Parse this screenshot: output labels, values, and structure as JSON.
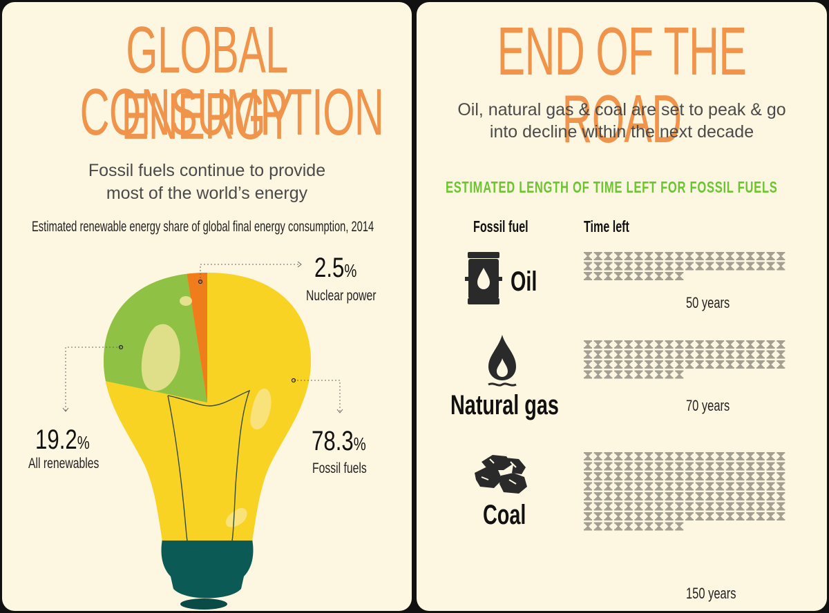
{
  "left": {
    "title_line1": "GLOBAL ENERGY",
    "title_line2": "CONSUMPTION",
    "subtitle_line1": "Fossil fuels continue to provide",
    "subtitle_line2": "most of the world’s energy",
    "chart_caption": "Estimated renewable energy share of global final energy consumption, 2014"
  },
  "right": {
    "title": "END OF THE ROAD",
    "subtitle_line1": "Oil, natural gas & coal are set to peak & go",
    "subtitle_line2": "into decline within the next decade",
    "heading": "ESTIMATED LENGTH OF TIME LEFT FOR FOSSIL FUELS",
    "col_fuel": "Fossil fuel",
    "col_time": "Time left"
  },
  "colors": {
    "title": "#f0944b",
    "fossil": "#f9d324",
    "renewables": "#8fc145",
    "nuclear": "#f07d1b",
    "bulb_base": "#0c5a56",
    "heading_green": "#6cc431",
    "hourglass": "#a39f93"
  },
  "icons": [
    "oil-barrel-icon",
    "gas-flame-icon",
    "coal-lumps-icon",
    "hourglass-icon"
  ],
  "chart_data": [
    {
      "type": "pie",
      "title": "Estimated renewable energy share of global final energy consumption, 2014",
      "slices": [
        {
          "label": "Fossil fuels",
          "value": 78.3,
          "display": "78.3",
          "unit": "%"
        },
        {
          "label": "All renewables",
          "value": 19.2,
          "display": "19.2",
          "unit": "%"
        },
        {
          "label": "Nuclear power",
          "value": 2.5,
          "display": "2.5",
          "unit": "%"
        }
      ]
    },
    {
      "type": "table",
      "title": "ESTIMATED LENGTH OF TIME LEFT FOR FOSSIL FUELS",
      "columns": [
        "Fossil fuel",
        "Time left"
      ],
      "rows": [
        {
          "fuel": "Oil",
          "years": 50,
          "label": "50 years"
        },
        {
          "fuel": "Natural gas",
          "years": 70,
          "label": "70 years"
        },
        {
          "fuel": "Coal",
          "years": 150,
          "label": "150 years"
        }
      ]
    }
  ]
}
